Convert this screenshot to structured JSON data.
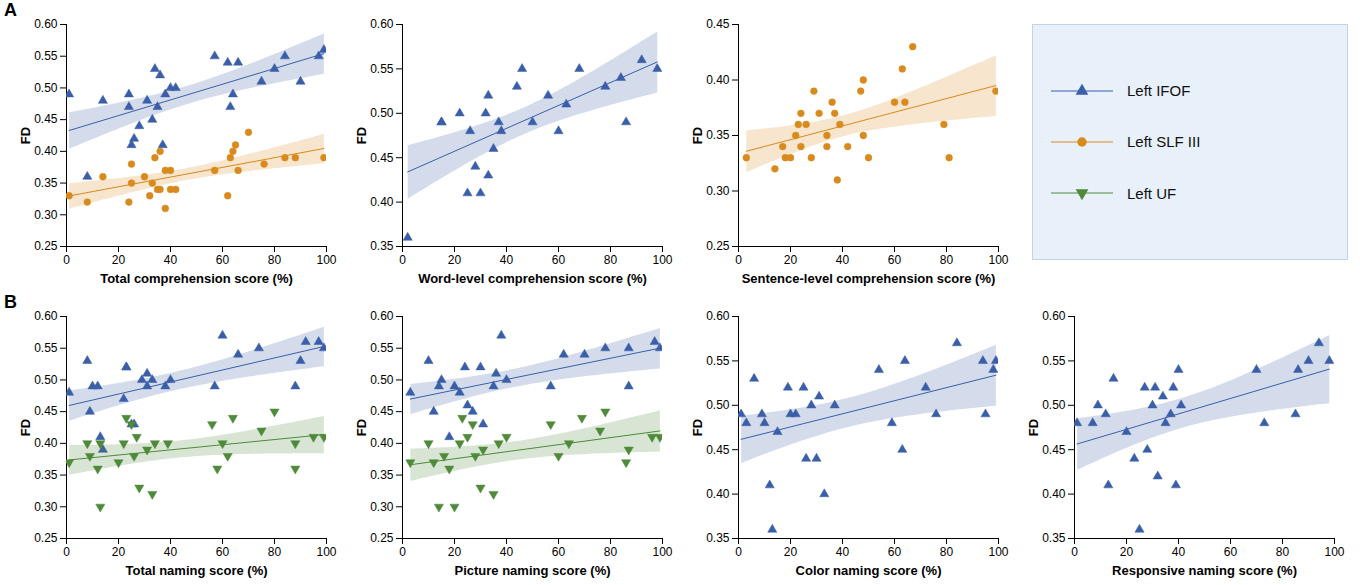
{
  "chart_data": [
    {
      "type": "scatter",
      "panel": "A",
      "legend": "right",
      "xlabel": "Total comprehension score (%)",
      "ylabel": "FD",
      "xlim": [
        0,
        100
      ],
      "xticks": [
        0,
        20,
        40,
        60,
        80,
        100
      ],
      "ylim": [
        0.25,
        0.6
      ],
      "yticks": [
        0.25,
        {
          "value": 0.3,
          "label": "0.30"
        },
        0.35,
        {
          "value": 0.4,
          "label": "0.40"
        },
        0.45,
        {
          "value": 0.5,
          "label": "0.50"
        },
        0.55,
        {
          "value": 0.6,
          "label": "0.60"
        }
      ],
      "series": [
        {
          "name": "Left IFOF",
          "color": "#3a5fa8",
          "marker": "triangle",
          "x": [
            1,
            8,
            14,
            24,
            24,
            25,
            26,
            28,
            31,
            33,
            34,
            35,
            36,
            37,
            38,
            40,
            42,
            57,
            62,
            63,
            64,
            66,
            75,
            80,
            84,
            90,
            97,
            99
          ],
          "values": [
            0.49,
            0.36,
            0.48,
            0.49,
            0.47,
            0.41,
            0.42,
            0.44,
            0.48,
            0.45,
            0.53,
            0.47,
            0.52,
            0.41,
            0.49,
            0.5,
            0.5,
            0.55,
            0.54,
            0.47,
            0.49,
            0.54,
            0.51,
            0.53,
            0.55,
            0.51,
            0.55,
            0.56
          ]
        },
        {
          "name": "Left SLF III",
          "color": "#d98a1c",
          "marker": "circle",
          "x": [
            1,
            8,
            14,
            24,
            25,
            25,
            30,
            32,
            33,
            34,
            35,
            36,
            36,
            38,
            38,
            40,
            40,
            42,
            57,
            62,
            63,
            64,
            65,
            66,
            70,
            76,
            84,
            88,
            99
          ],
          "values": [
            0.33,
            0.32,
            0.36,
            0.32,
            0.38,
            0.35,
            0.36,
            0.33,
            0.35,
            0.39,
            0.34,
            0.34,
            0.4,
            0.37,
            0.31,
            0.37,
            0.34,
            0.34,
            0.37,
            0.33,
            0.39,
            0.4,
            0.41,
            0.37,
            0.43,
            0.38,
            0.39,
            0.39,
            0.39
          ]
        }
      ]
    },
    {
      "type": "scatter",
      "xlabel": "Word-level comprehension score (%)",
      "ylabel": "FD",
      "xlim": [
        0,
        100
      ],
      "xticks": [
        0,
        20,
        40,
        60,
        80,
        100
      ],
      "ylim": [
        0.35,
        0.6
      ],
      "yticks": [
        0.35,
        {
          "value": 0.4,
          "label": "0.40"
        },
        0.45,
        {
          "value": 0.5,
          "label": "0.50"
        },
        0.55,
        {
          "value": 0.6,
          "label": "0.60"
        }
      ],
      "series": [
        {
          "name": "Left IFOF",
          "color": "#3a5fa8",
          "marker": "triangle",
          "x": [
            2,
            15,
            15,
            22,
            25,
            26,
            28,
            30,
            32,
            33,
            33,
            35,
            37,
            38,
            44,
            46,
            50,
            56,
            60,
            63,
            68,
            78,
            84,
            86,
            92,
            98
          ],
          "values": [
            0.36,
            0.49,
            0.49,
            0.5,
            0.41,
            0.48,
            0.44,
            0.41,
            0.5,
            0.52,
            0.43,
            0.46,
            0.49,
            0.48,
            0.53,
            0.55,
            0.49,
            0.52,
            0.48,
            0.51,
            0.55,
            0.53,
            0.54,
            0.49,
            0.56,
            0.55
          ]
        }
      ]
    },
    {
      "type": "scatter",
      "xlabel": "Sentence-level comprehension score (%)",
      "ylabel": "FD",
      "xlim": [
        0,
        100
      ],
      "xticks": [
        0,
        20,
        40,
        60,
        80,
        100
      ],
      "ylim": [
        0.25,
        0.45
      ],
      "yticks": [
        0.25,
        {
          "value": 0.3,
          "label": "0.30"
        },
        0.35,
        {
          "value": 0.4,
          "label": "0.40"
        },
        0.45
      ],
      "series": [
        {
          "name": "Left SLF III",
          "color": "#d98a1c",
          "marker": "circle",
          "x": [
            3,
            14,
            17,
            18,
            20,
            22,
            23,
            24,
            24,
            26,
            28,
            29,
            31,
            34,
            34,
            36,
            37,
            38,
            39,
            42,
            47,
            48,
            48,
            50,
            60,
            63,
            64,
            67,
            79,
            81,
            99
          ],
          "values": [
            0.33,
            0.32,
            0.34,
            0.33,
            0.33,
            0.35,
            0.36,
            0.37,
            0.34,
            0.36,
            0.33,
            0.39,
            0.37,
            0.35,
            0.34,
            0.38,
            0.37,
            0.31,
            0.36,
            0.34,
            0.39,
            0.4,
            0.35,
            0.33,
            0.38,
            0.41,
            0.38,
            0.43,
            0.36,
            0.33,
            0.39
          ]
        }
      ]
    },
    {
      "type": "scatter",
      "panel": "B",
      "xlabel": "Total naming score (%)",
      "ylabel": "FD",
      "xlim": [
        0,
        100
      ],
      "xticks": [
        0,
        20,
        40,
        60,
        80,
        100
      ],
      "ylim": [
        0.25,
        0.6
      ],
      "yticks": [
        0.25,
        {
          "value": 0.3,
          "label": "0.30"
        },
        0.35,
        {
          "value": 0.4,
          "label": "0.40"
        },
        0.45,
        {
          "value": 0.5,
          "label": "0.50"
        },
        0.55,
        {
          "value": 0.6,
          "label": "0.60"
        }
      ],
      "series": [
        {
          "name": "Left IFOF",
          "color": "#3a5fa8",
          "marker": "triangle",
          "x": [
            1,
            8,
            9,
            10,
            12,
            13,
            14,
            22,
            23,
            23,
            25,
            26,
            29,
            31,
            31,
            33,
            38,
            40,
            57,
            60,
            66,
            74,
            88,
            90,
            92,
            97,
            99
          ],
          "values": [
            0.48,
            0.53,
            0.45,
            0.49,
            0.49,
            0.41,
            0.39,
            0.47,
            0.52,
            0.52,
            0.43,
            0.43,
            0.5,
            0.51,
            0.49,
            0.5,
            0.49,
            0.5,
            0.49,
            0.57,
            0.54,
            0.55,
            0.49,
            0.53,
            0.56,
            0.56,
            0.55
          ]
        },
        {
          "name": "Left UF",
          "color": "#4e8a3a",
          "marker": "triangle-down",
          "x": [
            1,
            8,
            9,
            12,
            13,
            13,
            20,
            22,
            23,
            25,
            26,
            27,
            28,
            31,
            33,
            34,
            39,
            56,
            58,
            60,
            62,
            64,
            75,
            80,
            88,
            88,
            95,
            99
          ],
          "values": [
            0.37,
            0.4,
            0.38,
            0.36,
            0.3,
            0.4,
            0.37,
            0.4,
            0.44,
            0.43,
            0.38,
            0.41,
            0.33,
            0.39,
            0.32,
            0.4,
            0.4,
            0.43,
            0.36,
            0.4,
            0.38,
            0.44,
            0.42,
            0.45,
            0.36,
            0.4,
            0.41,
            0.41
          ]
        }
      ]
    },
    {
      "type": "scatter",
      "xlabel": "Picture naming score (%)",
      "ylabel": "FD",
      "xlim": [
        0,
        100
      ],
      "xticks": [
        0,
        20,
        40,
        60,
        80,
        100
      ],
      "ylim": [
        0.25,
        0.6
      ],
      "yticks": [
        0.25,
        {
          "value": 0.3,
          "label": "0.30"
        },
        0.35,
        {
          "value": 0.4,
          "label": "0.40"
        },
        0.45,
        {
          "value": 0.5,
          "label": "0.50"
        },
        0.55,
        {
          "value": 0.6,
          "label": "0.60"
        }
      ],
      "series": [
        {
          "name": "Left IFOF",
          "color": "#3a5fa8",
          "marker": "triangle",
          "x": [
            3,
            10,
            12,
            14,
            15,
            18,
            20,
            22,
            24,
            25,
            27,
            30,
            31,
            35,
            36,
            38,
            40,
            57,
            62,
            70,
            78,
            87,
            87,
            97,
            99
          ],
          "values": [
            0.48,
            0.53,
            0.45,
            0.49,
            0.5,
            0.41,
            0.49,
            0.48,
            0.52,
            0.46,
            0.45,
            0.52,
            0.43,
            0.49,
            0.51,
            0.57,
            0.5,
            0.49,
            0.54,
            0.54,
            0.55,
            0.55,
            0.49,
            0.56,
            0.55
          ]
        },
        {
          "name": "Left UF",
          "color": "#4e8a3a",
          "marker": "triangle-down",
          "x": [
            3,
            10,
            12,
            14,
            16,
            18,
            20,
            22,
            23,
            25,
            27,
            28,
            30,
            31,
            35,
            37,
            40,
            57,
            60,
            64,
            69,
            76,
            78,
            86,
            87,
            96,
            99
          ],
          "values": [
            0.37,
            0.4,
            0.37,
            0.3,
            0.38,
            0.36,
            0.3,
            0.4,
            0.44,
            0.41,
            0.43,
            0.38,
            0.33,
            0.39,
            0.32,
            0.4,
            0.41,
            0.43,
            0.38,
            0.4,
            0.44,
            0.42,
            0.45,
            0.37,
            0.39,
            0.41,
            0.41
          ]
        }
      ]
    },
    {
      "type": "scatter",
      "xlabel": "Color naming score (%)",
      "ylabel": "FD",
      "xlim": [
        0,
        100
      ],
      "xticks": [
        0,
        20,
        40,
        60,
        80,
        100
      ],
      "ylim": [
        0.35,
        0.6
      ],
      "yticks": [
        0.35,
        {
          "value": 0.4,
          "label": "0.40"
        },
        0.45,
        {
          "value": 0.5,
          "label": "0.50"
        },
        0.55,
        {
          "value": 0.6,
          "label": "0.60"
        }
      ],
      "series": [
        {
          "name": "Left IFOF",
          "color": "#3a5fa8",
          "marker": "triangle",
          "x": [
            1,
            3,
            6,
            9,
            10,
            12,
            13,
            15,
            19,
            20,
            22,
            25,
            26,
            28,
            30,
            31,
            33,
            37,
            54,
            59,
            63,
            64,
            72,
            76,
            84,
            94,
            95,
            98,
            99
          ],
          "values": [
            0.49,
            0.48,
            0.53,
            0.49,
            0.48,
            0.41,
            0.36,
            0.47,
            0.52,
            0.49,
            0.49,
            0.52,
            0.44,
            0.5,
            0.44,
            0.51,
            0.4,
            0.5,
            0.54,
            0.48,
            0.45,
            0.55,
            0.52,
            0.49,
            0.57,
            0.55,
            0.49,
            0.54,
            0.55
          ]
        }
      ]
    },
    {
      "type": "scatter",
      "xlabel": "Responsive naming score (%)",
      "ylabel": "FD",
      "xlim": [
        0,
        100
      ],
      "xticks": [
        0,
        20,
        40,
        60,
        80,
        100
      ],
      "ylim": [
        0.35,
        0.6
      ],
      "yticks": [
        0.35,
        {
          "value": 0.4,
          "label": "0.40"
        },
        0.45,
        {
          "value": 0.5,
          "label": "0.50"
        },
        0.55,
        {
          "value": 0.6,
          "label": "0.60"
        }
      ],
      "series": [
        {
          "name": "Left IFOF",
          "color": "#3a5fa8",
          "marker": "triangle",
          "x": [
            1,
            7,
            9,
            12,
            13,
            15,
            20,
            23,
            25,
            27,
            28,
            30,
            31,
            32,
            34,
            35,
            37,
            38,
            39,
            40,
            41,
            70,
            73,
            85,
            86,
            90,
            94,
            98
          ],
          "values": [
            0.48,
            0.48,
            0.5,
            0.49,
            0.41,
            0.53,
            0.47,
            0.44,
            0.36,
            0.52,
            0.45,
            0.5,
            0.52,
            0.42,
            0.51,
            0.48,
            0.49,
            0.52,
            0.41,
            0.54,
            0.5,
            0.54,
            0.48,
            0.49,
            0.54,
            0.55,
            0.57,
            0.55
          ]
        }
      ]
    }
  ]
}
